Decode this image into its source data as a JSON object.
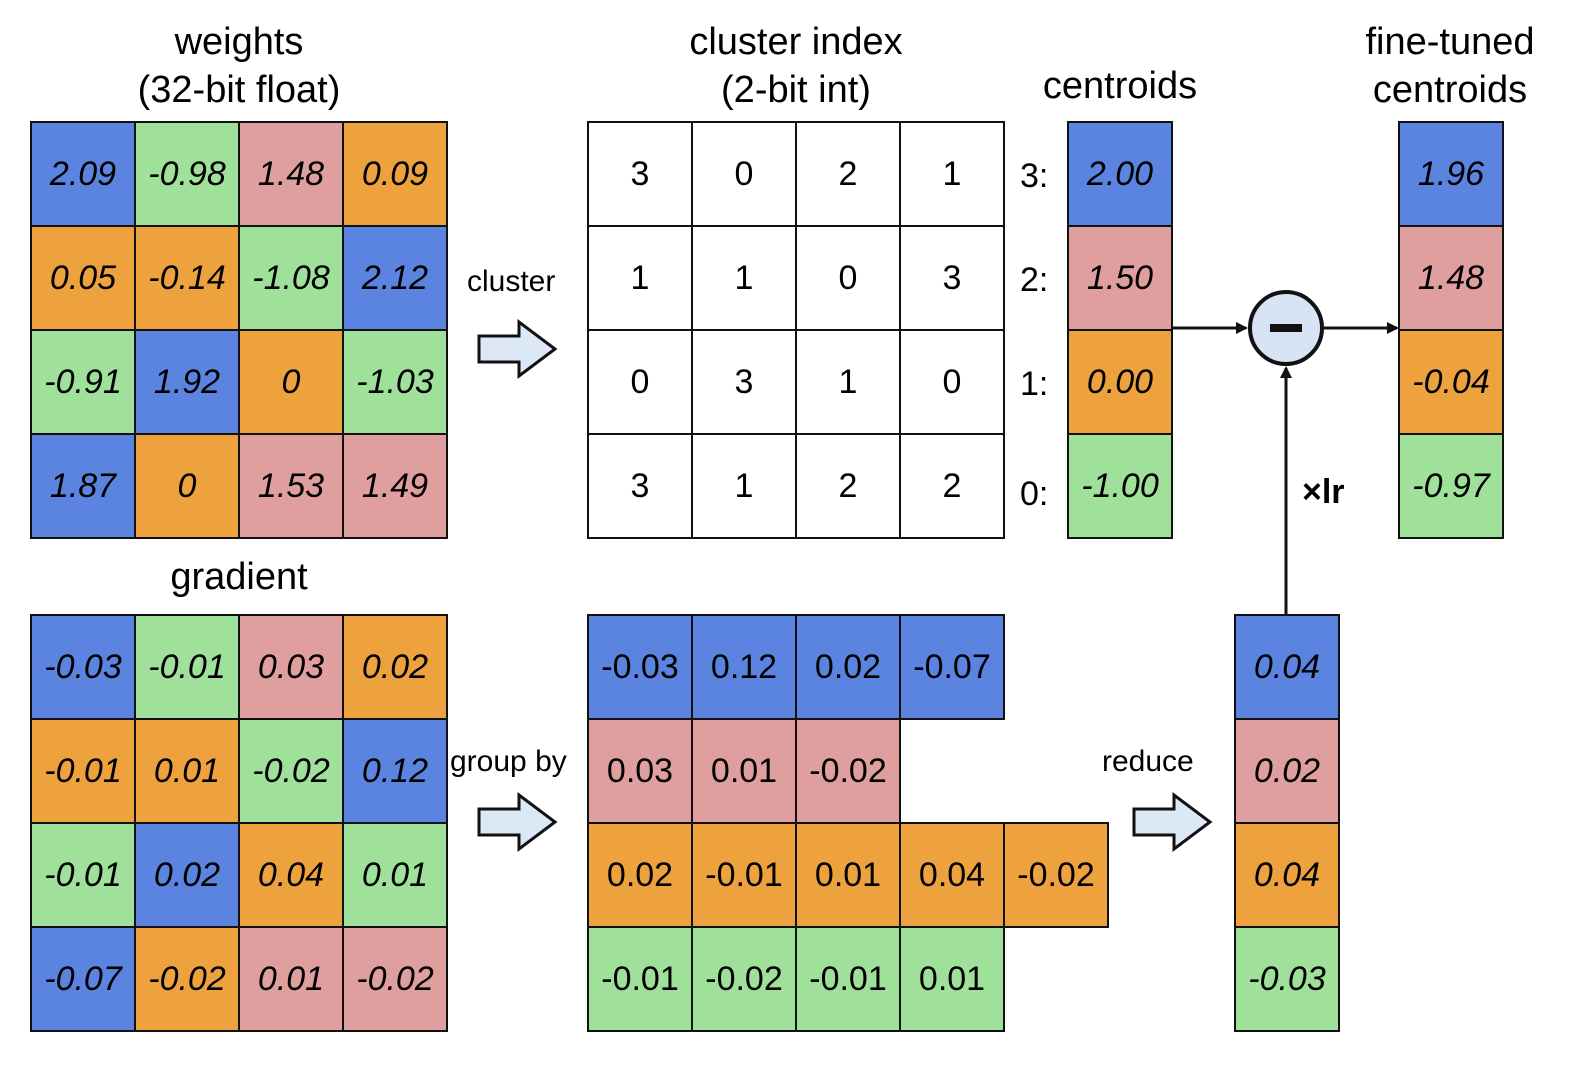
{
  "colors": {
    "blue": "#5b84e0",
    "green": "#9fe19b",
    "pink": "#e09f9f",
    "orange": "#eda23e",
    "minus_fill": "#d8e4f4",
    "arrow_fill": "#dce8f5"
  },
  "weights": {
    "title_line1": "weights",
    "title_line2": "(32-bit float)",
    "cells": [
      [
        {
          "v": "2.09",
          "c": "blue"
        },
        {
          "v": "-0.98",
          "c": "green"
        },
        {
          "v": "1.48",
          "c": "pink"
        },
        {
          "v": "0.09",
          "c": "orange"
        }
      ],
      [
        {
          "v": "0.05",
          "c": "orange"
        },
        {
          "v": "-0.14",
          "c": "orange"
        },
        {
          "v": "-1.08",
          "c": "green"
        },
        {
          "v": "2.12",
          "c": "blue"
        }
      ],
      [
        {
          "v": "-0.91",
          "c": "green"
        },
        {
          "v": "1.92",
          "c": "blue"
        },
        {
          "v": "0",
          "c": "orange"
        },
        {
          "v": "-1.03",
          "c": "green"
        }
      ],
      [
        {
          "v": "1.87",
          "c": "blue"
        },
        {
          "v": "0",
          "c": "orange"
        },
        {
          "v": "1.53",
          "c": "pink"
        },
        {
          "v": "1.49",
          "c": "pink"
        }
      ]
    ]
  },
  "cluster_index": {
    "title_line1": "cluster index",
    "title_line2": "(2-bit int)",
    "cells": [
      [
        "3",
        "0",
        "2",
        "1"
      ],
      [
        "1",
        "1",
        "0",
        "3"
      ],
      [
        "0",
        "3",
        "1",
        "0"
      ],
      [
        "3",
        "1",
        "2",
        "2"
      ]
    ]
  },
  "centroids": {
    "title": "centroids",
    "keys": [
      "3:",
      "2:",
      "1:",
      "0:"
    ],
    "cells": [
      {
        "v": "2.00",
        "c": "blue"
      },
      {
        "v": "1.50",
        "c": "pink"
      },
      {
        "v": "0.00",
        "c": "orange"
      },
      {
        "v": "-1.00",
        "c": "green"
      }
    ]
  },
  "fine_tuned": {
    "title_line1": "fine-tuned",
    "title_line2": "centroids",
    "cells": [
      {
        "v": "1.96",
        "c": "blue"
      },
      {
        "v": "1.48",
        "c": "pink"
      },
      {
        "v": "-0.04",
        "c": "orange"
      },
      {
        "v": "-0.97",
        "c": "green"
      }
    ]
  },
  "gradient": {
    "title": "gradient",
    "cells": [
      [
        {
          "v": "-0.03",
          "c": "blue"
        },
        {
          "v": "-0.01",
          "c": "green"
        },
        {
          "v": "0.03",
          "c": "pink"
        },
        {
          "v": "0.02",
          "c": "orange"
        }
      ],
      [
        {
          "v": "-0.01",
          "c": "orange"
        },
        {
          "v": "0.01",
          "c": "orange"
        },
        {
          "v": "-0.02",
          "c": "green"
        },
        {
          "v": "0.12",
          "c": "blue"
        }
      ],
      [
        {
          "v": "-0.01",
          "c": "green"
        },
        {
          "v": "0.02",
          "c": "blue"
        },
        {
          "v": "0.04",
          "c": "orange"
        },
        {
          "v": "0.01",
          "c": "green"
        }
      ],
      [
        {
          "v": "-0.07",
          "c": "blue"
        },
        {
          "v": "-0.02",
          "c": "orange"
        },
        {
          "v": "0.01",
          "c": "pink"
        },
        {
          "v": "-0.02",
          "c": "pink"
        }
      ]
    ]
  },
  "grouped": {
    "rows": [
      {
        "c": "blue",
        "values": [
          "-0.03",
          "0.12",
          "0.02",
          "-0.07"
        ]
      },
      {
        "c": "pink",
        "values": [
          "0.03",
          "0.01",
          "-0.02"
        ]
      },
      {
        "c": "orange",
        "values": [
          "0.02",
          "-0.01",
          "0.01",
          "0.04",
          "-0.02"
        ]
      },
      {
        "c": "green",
        "values": [
          "-0.01",
          "-0.02",
          "-0.01",
          "0.01"
        ]
      }
    ]
  },
  "reduced": {
    "cells": [
      {
        "v": "0.04",
        "c": "blue"
      },
      {
        "v": "0.02",
        "c": "pink"
      },
      {
        "v": "0.04",
        "c": "orange"
      },
      {
        "v": "-0.03",
        "c": "green"
      }
    ]
  },
  "labels": {
    "cluster": "cluster",
    "group_by": "group by",
    "reduce": "reduce",
    "lr": "×lr"
  }
}
